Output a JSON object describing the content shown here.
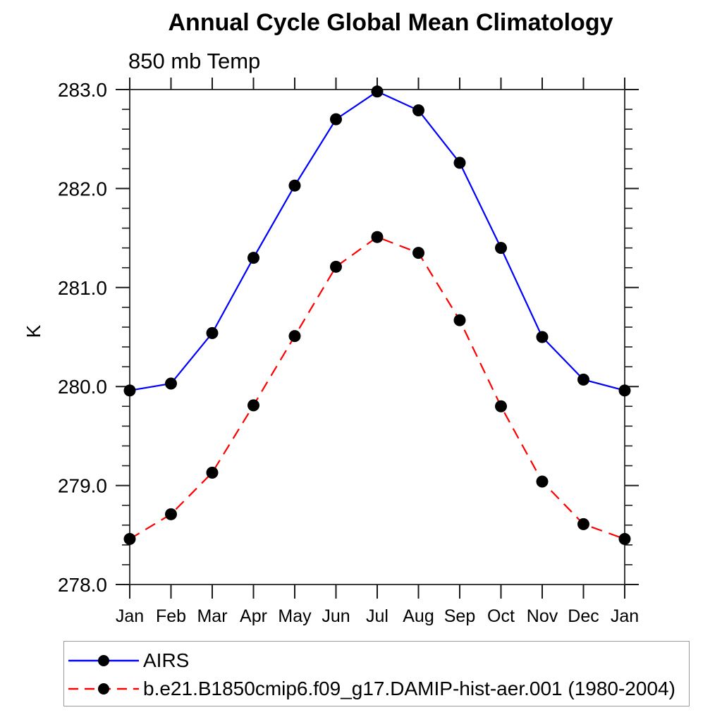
{
  "title": "Annual Cycle Global Mean Climatology",
  "subtitle": "850 mb Temp",
  "ylabel": "K",
  "colors": {
    "airs_line": "#0000ff",
    "model_line": "#ff0000",
    "marker": "#000000",
    "frame": "#3c3c3c",
    "tick": "#1a1a1a",
    "legend_border": "#9a9a9a"
  },
  "chart_data": {
    "type": "line",
    "title": "Annual Cycle Global Mean Climatology",
    "subtitle": "850 mb Temp",
    "xlabel": "",
    "ylabel": "K",
    "x_categories": [
      "Jan",
      "Feb",
      "Mar",
      "Apr",
      "May",
      "Jun",
      "Jul",
      "Aug",
      "Sep",
      "Oct",
      "Nov",
      "Dec",
      "Jan"
    ],
    "ytick_labels": [
      "283.0",
      "282.0",
      "281.0",
      "280.0",
      "279.0",
      "278.0"
    ],
    "ylim": [
      278.0,
      283.0
    ],
    "major_tick_interval": 1.0,
    "minor_tick_interval": 0.2,
    "grid": "off",
    "legend_position": "bottom-left-box",
    "series": [
      {
        "name": "AIRS",
        "color": "#0000ff",
        "line": "solid",
        "marker": "circle",
        "marker_color": "#000000",
        "values": [
          279.96,
          280.03,
          280.54,
          281.3,
          282.03,
          282.7,
          282.98,
          282.79,
          282.26,
          281.4,
          280.5,
          280.07,
          279.96
        ]
      },
      {
        "name": "b.e21.B1850cmip6.f09_g17.DAMIP-hist-aer.001 (1980-2004)",
        "color": "#ff0000",
        "line": "dashed",
        "marker": "circle",
        "marker_color": "#000000",
        "values": [
          278.46,
          278.71,
          279.13,
          279.81,
          280.51,
          281.21,
          281.51,
          281.35,
          280.67,
          279.8,
          279.04,
          278.61,
          278.46
        ]
      }
    ]
  }
}
